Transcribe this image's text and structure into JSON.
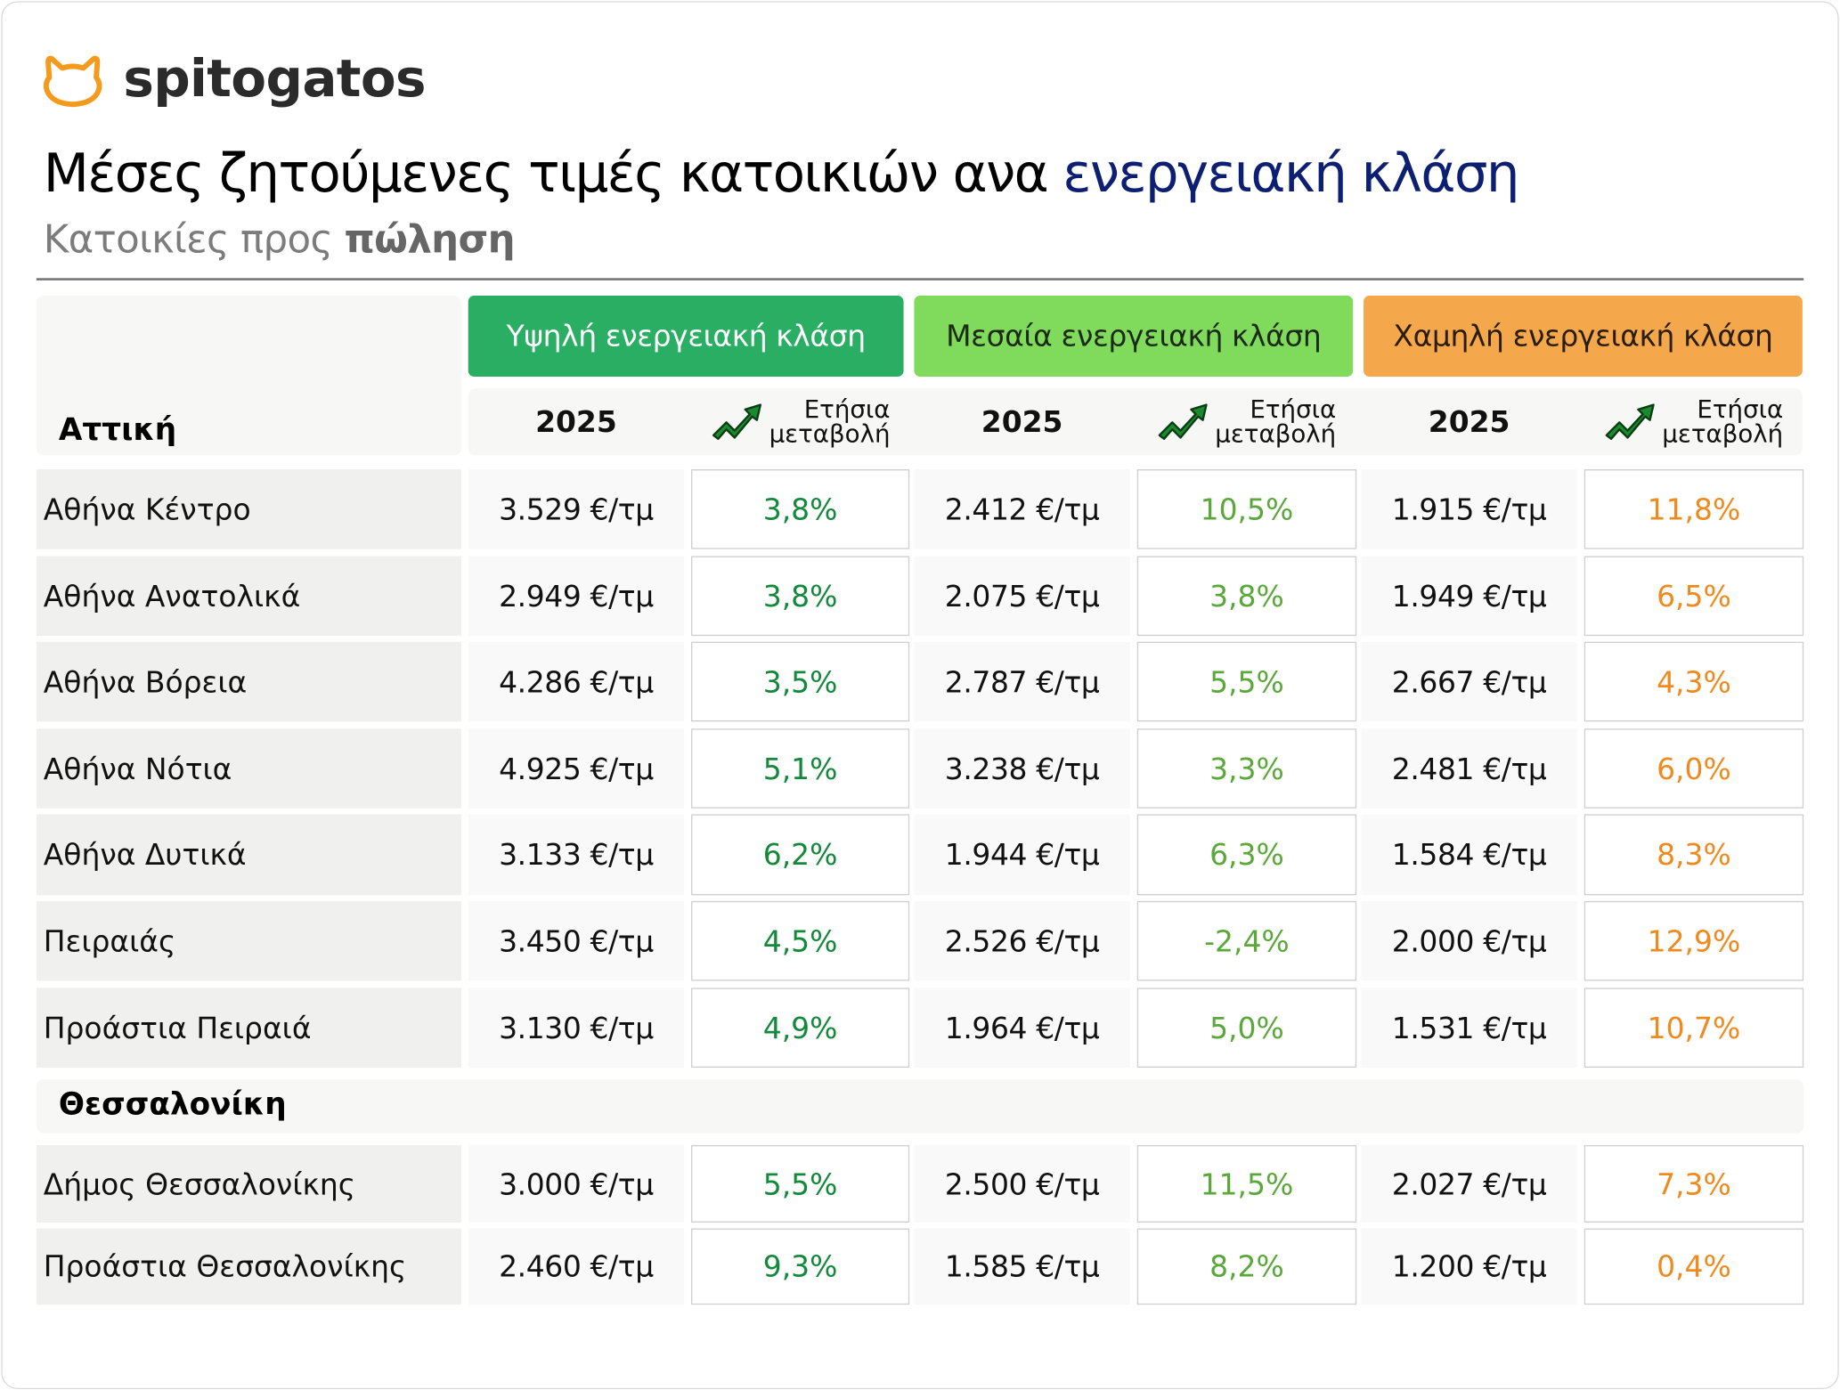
{
  "brand": {
    "name": "spitogatos",
    "logo_icon": "cat-head-icon",
    "logo_color": "#f59a1c"
  },
  "header": {
    "title_main": "Μέσες ζητούμενες τιμές κατοικιών ανα ",
    "title_accent": "ενεργειακή κλάση",
    "subtitle_main": "Κατοικίες προς ",
    "subtitle_bold": "πώληση"
  },
  "colors": {
    "accent_title": "#0c1f73",
    "high_class": "#29ae63",
    "mid_class": "#80da5b",
    "low_class": "#f4a84b",
    "high_pct_text": "#128a3a",
    "mid_pct_text": "#5aa83a",
    "low_pct_text": "#f08a1e"
  },
  "table": {
    "categories": [
      {
        "key": "high",
        "label": "Υψηλή ενεργειακή κλάση"
      },
      {
        "key": "mid",
        "label": "Μεσαία ενεργειακή κλάση"
      },
      {
        "key": "low",
        "label": "Χαμηλή ενεργειακή κλάση"
      }
    ],
    "subheaders": {
      "year": "2025",
      "change_line1": "Ετήσια",
      "change_line2": "μεταβολή",
      "change_icon": "trend-up-icon"
    },
    "sections": [
      {
        "region": "Αττική",
        "rows": [
          {
            "area": "Αθήνα Κέντρο",
            "high_price": "3.529 €/τμ",
            "high_change": "3,8%",
            "mid_price": "2.412 €/τμ",
            "mid_change": "10,5%",
            "low_price": "1.915 €/τμ",
            "low_change": "11,8%"
          },
          {
            "area": "Αθήνα Ανατολικά",
            "high_price": "2.949 €/τμ",
            "high_change": "3,8%",
            "mid_price": "2.075 €/τμ",
            "mid_change": "3,8%",
            "low_price": "1.949 €/τμ",
            "low_change": "6,5%"
          },
          {
            "area": "Αθήνα Βόρεια",
            "high_price": "4.286 €/τμ",
            "high_change": "3,5%",
            "mid_price": "2.787 €/τμ",
            "mid_change": "5,5%",
            "low_price": "2.667 €/τμ",
            "low_change": "4,3%"
          },
          {
            "area": "Αθήνα Νότια",
            "high_price": "4.925 €/τμ",
            "high_change": "5,1%",
            "mid_price": "3.238 €/τμ",
            "mid_change": "3,3%",
            "low_price": "2.481 €/τμ",
            "low_change": "6,0%"
          },
          {
            "area": "Αθήνα Δυτικά",
            "high_price": "3.133 €/τμ",
            "high_change": "6,2%",
            "mid_price": "1.944 €/τμ",
            "mid_change": "6,3%",
            "low_price": "1.584 €/τμ",
            "low_change": "8,3%"
          },
          {
            "area": "Πειραιάς",
            "high_price": "3.450 €/τμ",
            "high_change": "4,5%",
            "mid_price": "2.526 €/τμ",
            "mid_change": "-2,4%",
            "low_price": "2.000 €/τμ",
            "low_change": "12,9%"
          },
          {
            "area": "Προάστια Πειραιά",
            "high_price": "3.130 €/τμ",
            "high_change": "4,9%",
            "mid_price": "1.964 €/τμ",
            "mid_change": "5,0%",
            "low_price": "1.531 €/τμ",
            "low_change": "10,7%"
          }
        ]
      },
      {
        "region": "Θεσσαλονίκη",
        "rows": [
          {
            "area": "Δήμος Θεσσαλονίκης",
            "high_price": "3.000 €/τμ",
            "high_change": "5,5%",
            "mid_price": "2.500 €/τμ",
            "mid_change": "11,5%",
            "low_price": "2.027 €/τμ",
            "low_change": "7,3%"
          },
          {
            "area": "Προάστια Θεσσαλονίκης",
            "high_price": "2.460 €/τμ",
            "high_change": "9,3%",
            "mid_price": "1.585 €/τμ",
            "mid_change": "8,2%",
            "low_price": "1.200 €/τμ",
            "low_change": "0,4%"
          }
        ]
      }
    ]
  }
}
